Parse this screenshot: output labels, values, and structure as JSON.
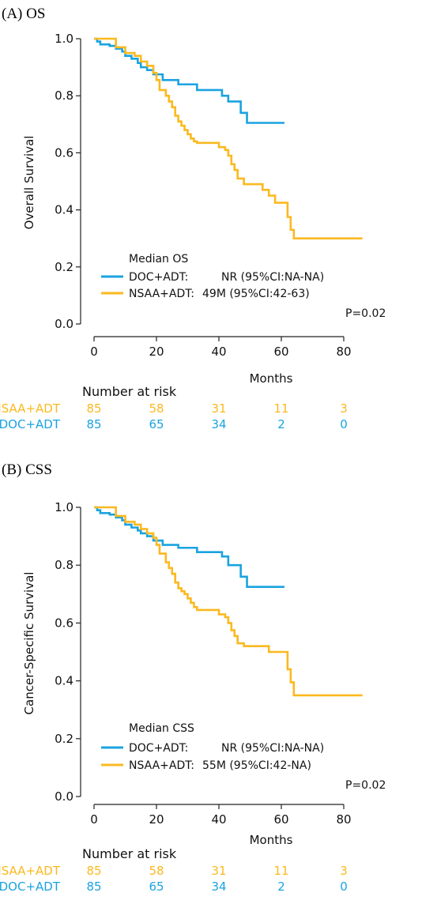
{
  "chart_data": [
    {
      "type": "line",
      "panel_label": "(A) OS",
      "xlabel": "Months",
      "ylabel": "Overall Survival",
      "xlim": [
        0,
        88
      ],
      "ylim": [
        0,
        1.0
      ],
      "xticks": [
        "0",
        "20",
        "40",
        "60",
        "80"
      ],
      "yticks": [
        "0.0",
        "0.2",
        "0.4",
        "0.6",
        "0.8",
        "1.0"
      ],
      "legend_title": "Median OS",
      "p_value": "P=0.02",
      "series": [
        {
          "name": "DOC+ADT",
          "legend_label": "DOC+ADT:",
          "legend_value": "NR (95%CI:NA-NA)",
          "color": "#1aa3e0",
          "x": [
            0,
            1,
            2,
            5,
            7,
            9,
            10,
            12,
            14,
            15,
            17,
            19,
            22,
            27,
            33,
            41,
            43,
            47,
            49,
            61
          ],
          "y": [
            1.0,
            0.99,
            0.98,
            0.975,
            0.965,
            0.955,
            0.94,
            0.93,
            0.915,
            0.9,
            0.89,
            0.875,
            0.855,
            0.84,
            0.82,
            0.8,
            0.78,
            0.74,
            0.705,
            0.705
          ]
        },
        {
          "name": "NSAA+ADT",
          "legend_label": "NSAA+ADT:",
          "legend_value": "49M (95%CI:42-63)",
          "color": "#fbb91f",
          "x": [
            0,
            1,
            6,
            7,
            10,
            13,
            15,
            17,
            19,
            20,
            21,
            23,
            24,
            25,
            26,
            27,
            28,
            29,
            30,
            31,
            32,
            33,
            40,
            42,
            43,
            44,
            45,
            46,
            48,
            54,
            56,
            58,
            62,
            63,
            64,
            86
          ],
          "y": [
            1.0,
            1.0,
            1.0,
            0.97,
            0.95,
            0.94,
            0.92,
            0.905,
            0.88,
            0.855,
            0.82,
            0.8,
            0.78,
            0.76,
            0.73,
            0.71,
            0.695,
            0.68,
            0.665,
            0.65,
            0.64,
            0.635,
            0.62,
            0.61,
            0.59,
            0.56,
            0.54,
            0.51,
            0.49,
            0.47,
            0.45,
            0.425,
            0.375,
            0.33,
            0.3,
            0.3
          ]
        }
      ],
      "risk_table": {
        "title": "Number at risk",
        "rows": [
          {
            "label": "NSAA+ADT",
            "color": "#fbb91f",
            "values": [
              "85",
              "58",
              "31",
              "11",
              "3"
            ]
          },
          {
            "label": "DOC+ADT",
            "color": "#1aa3e0",
            "values": [
              "85",
              "65",
              "34",
              "2",
              "0"
            ]
          }
        ]
      }
    },
    {
      "type": "line",
      "panel_label": "(B) CSS",
      "xlabel": "Months",
      "ylabel": "Cancer-Specific Survival",
      "xlim": [
        0,
        88
      ],
      "ylim": [
        0,
        1.0
      ],
      "xticks": [
        "0",
        "20",
        "40",
        "60",
        "80"
      ],
      "yticks": [
        "0.0",
        "0.2",
        "0.4",
        "0.6",
        "0.8",
        "1.0"
      ],
      "legend_title": "Median CSS",
      "p_value": "P=0.02",
      "series": [
        {
          "name": "DOC+ADT",
          "legend_label": "DOC+ADT:",
          "legend_value": "NR (95%CI:NA-NA)",
          "color": "#1aa3e0",
          "x": [
            0,
            1,
            2,
            5,
            7,
            9,
            10,
            12,
            14,
            15,
            17,
            19,
            22,
            27,
            33,
            41,
            43,
            47,
            49,
            61
          ],
          "y": [
            1.0,
            0.99,
            0.98,
            0.975,
            0.965,
            0.955,
            0.94,
            0.93,
            0.92,
            0.91,
            0.9,
            0.885,
            0.87,
            0.86,
            0.845,
            0.83,
            0.8,
            0.76,
            0.725,
            0.725
          ]
        },
        {
          "name": "NSAA+ADT",
          "legend_label": "NSAA+ADT:",
          "legend_value": "55M (95%CI:42-NA)",
          "color": "#fbb91f",
          "x": [
            0,
            1,
            6,
            7,
            10,
            13,
            15,
            17,
            19,
            20,
            21,
            23,
            24,
            25,
            26,
            27,
            28,
            29,
            30,
            31,
            32,
            33,
            40,
            42,
            43,
            44,
            45,
            46,
            48,
            54,
            56,
            58,
            62,
            63,
            64,
            86
          ],
          "y": [
            1.0,
            1.0,
            1.0,
            0.97,
            0.95,
            0.94,
            0.925,
            0.91,
            0.895,
            0.87,
            0.84,
            0.81,
            0.79,
            0.77,
            0.74,
            0.72,
            0.71,
            0.7,
            0.685,
            0.67,
            0.655,
            0.645,
            0.63,
            0.62,
            0.6,
            0.575,
            0.555,
            0.53,
            0.52,
            0.52,
            0.5,
            0.5,
            0.44,
            0.395,
            0.35,
            0.35
          ]
        }
      ],
      "risk_table": {
        "title": "Number at risk",
        "rows": [
          {
            "label": "NSAA+ADT",
            "color": "#fbb91f",
            "values": [
              "85",
              "58",
              "31",
              "11",
              "3"
            ]
          },
          {
            "label": "DOC+ADT",
            "color": "#1aa3e0",
            "values": [
              "85",
              "65",
              "34",
              "2",
              "0"
            ]
          }
        ]
      }
    }
  ]
}
